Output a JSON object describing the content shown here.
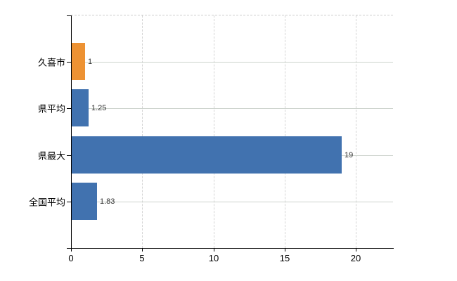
{
  "chart_data": {
    "type": "bar",
    "orientation": "horizontal",
    "title": "",
    "xlabel": "",
    "ylabel": "",
    "categories": [
      "久喜市",
      "県平均",
      "県最大",
      "全国平均"
    ],
    "values": [
      1,
      1.25,
      19,
      1.83
    ],
    "value_labels": [
      "1",
      "1.25",
      "19",
      "1.83"
    ],
    "series": [
      {
        "name": "value",
        "values": [
          1,
          1.25,
          19,
          1.83
        ]
      }
    ],
    "x_tick_labels": [
      "0",
      "5",
      "10",
      "15",
      "20"
    ],
    "x_tick_values": [
      0,
      5,
      10,
      15,
      20
    ],
    "xlim": [
      0,
      22.6
    ],
    "legend": "none",
    "grid": {
      "vertical_gridlines": "dashed",
      "horizontal_gridlines": "solid",
      "top_border": "dashed"
    },
    "colors": {
      "highlight_bar": "#ED9233",
      "default_bar": "#4172AF",
      "axis": "#000000",
      "horizontal_grid": "#ccd3cc",
      "vertical_grid": "#d4d4d4",
      "category_text": "#000000",
      "tick_text": "#000000",
      "value_text": "#333333",
      "background": "#ffffff"
    },
    "bar_colors": [
      "#ED9233",
      "#4172AF",
      "#4172AF",
      "#4172AF"
    ]
  }
}
